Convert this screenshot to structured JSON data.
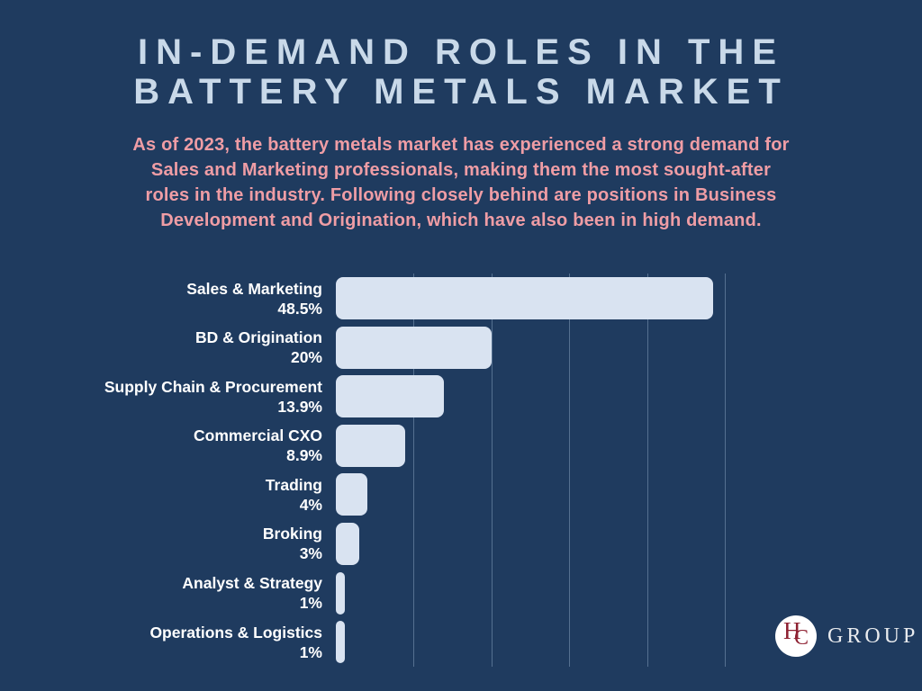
{
  "canvas": {
    "background_color": "#1f3b5f"
  },
  "title": {
    "line1": "IN-DEMAND ROLES IN THE",
    "line2": "BATTERY METALS MARKET",
    "color": "#c9d9e9"
  },
  "subtitle": {
    "color": "#ef9da5",
    "lines": [
      "As of 2023, the battery metals market has experienced a strong demand for",
      "Sales and Marketing professionals, making them the most sought-after",
      "roles in the industry. Following closely behind are positions in Business",
      "Development and Origination, which have also been in high demand."
    ]
  },
  "chart_data": {
    "type": "bar",
    "orientation": "horizontal",
    "title": "In-demand roles in the battery metals market (share of demand)",
    "categories": [
      "Sales & Marketing",
      "BD & Origination",
      "Supply Chain & Procurement",
      "Commercial CXO",
      "Trading",
      "Broking",
      "Analyst & Strategy",
      "Operations & Logistics"
    ],
    "values": [
      48.5,
      20,
      13.9,
      8.9,
      4,
      3,
      1,
      1
    ],
    "value_labels": [
      "48.5%",
      "20%",
      "13.9%",
      "8.9%",
      "4%",
      "3%",
      "1%",
      "1%"
    ],
    "xlabel": "",
    "ylabel": "",
    "xlim": [
      0,
      50
    ],
    "grid": true,
    "gridline_percents": [
      10,
      20,
      30,
      40,
      50
    ],
    "legend": false,
    "bar_color": "#d9e3f1",
    "label_color": "#ffffff",
    "gridline_color": "rgba(168,192,218,0.4)"
  },
  "logo": {
    "monogram_h": "H",
    "monogram_c": "C",
    "text": "GROUP",
    "circle_color": "#ffffff",
    "monogram_color": "#8e2132",
    "text_color": "#e9ebee"
  }
}
